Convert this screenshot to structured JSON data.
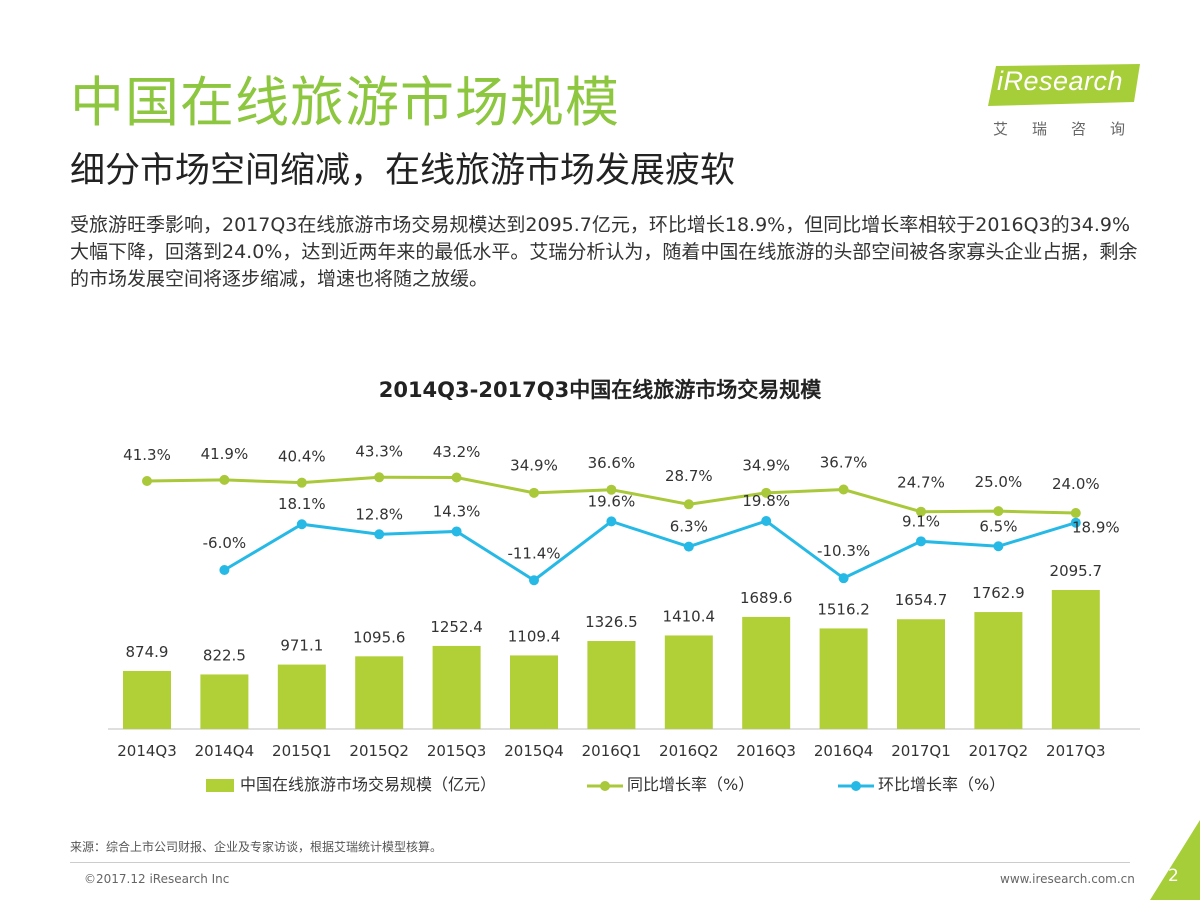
{
  "slide": {
    "title": "中国在线旅游市场规模",
    "subtitle": "细分市场空间缩减，在线旅游市场发展疲软",
    "body": "受旅游旺季影响，2017Q3在线旅游市场交易规模达到2095.7亿元，环比增长18.9%，但同比增长率相较于2016Q3的34.9%大幅下降，回落到24.0%，达到近两年来的最低水平。艾瑞分析认为，随着中国在线旅游的头部空间被各家寡头企业占据，剩余的市场发展空间将逐步缩减，增速也将随之放缓。"
  },
  "logo": {
    "text": "iResearch",
    "chinese": "艾瑞咨询"
  },
  "footer": {
    "source": "来源：综合上市公司财报、企业及专家访谈，根据艾瑞统计模型核算。",
    "copyright": "©2017.12 iResearch Inc",
    "website": "www.iresearch.com.cn",
    "page": "2"
  },
  "colors": {
    "bar": "#b1cf36",
    "yoy": "#a9c83a",
    "qoq": "#27b9e6",
    "title": "#8dc63f",
    "logo": "#a6ce39"
  },
  "chart_data": {
    "type": "bar",
    "title": "2014Q3-2017Q3中国在线旅游市场交易规模",
    "categories": [
      "2014Q3",
      "2014Q4",
      "2015Q1",
      "2015Q2",
      "2015Q3",
      "2015Q4",
      "2016Q1",
      "2016Q2",
      "2016Q3",
      "2016Q4",
      "2017Q1",
      "2017Q2",
      "2017Q3"
    ],
    "series": [
      {
        "name": "中国在线旅游市场交易规模（亿元）",
        "type": "bar",
        "values": [
          874.9,
          822.5,
          971.1,
          1095.6,
          1252.4,
          1109.4,
          1326.5,
          1410.4,
          1689.6,
          1516.2,
          1654.7,
          1762.9,
          2095.7
        ]
      },
      {
        "name": "同比增长率（%）",
        "type": "line",
        "values": [
          41.3,
          41.9,
          40.4,
          43.3,
          43.2,
          34.9,
          36.6,
          28.7,
          34.9,
          36.7,
          24.7,
          25.0,
          24.0
        ]
      },
      {
        "name": "环比增长率（%）",
        "type": "line",
        "values": [
          null,
          -6.0,
          18.1,
          12.8,
          14.3,
          -11.4,
          19.6,
          6.3,
          19.8,
          -10.3,
          9.1,
          6.5,
          18.9
        ]
      }
    ],
    "ylim_bar": [
      0,
      3200
    ],
    "ylim_yoy": [
      0,
      50
    ],
    "ylim_qoq": [
      -15,
      25
    ]
  }
}
